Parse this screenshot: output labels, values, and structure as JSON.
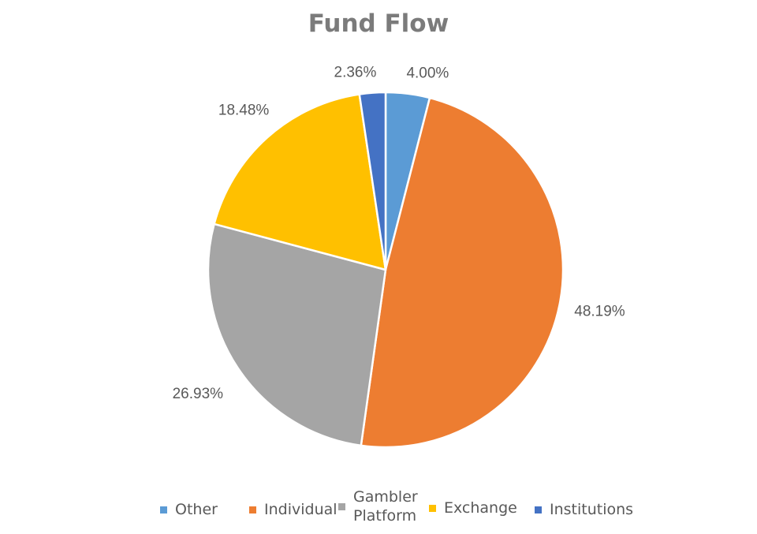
{
  "chart_data": {
    "type": "pie",
    "title": "Fund Flow",
    "categories": [
      "Other",
      "Individual",
      "Gambler Platform",
      "Exchange",
      "Institutions"
    ],
    "values": [
      4.0,
      48.19,
      26.93,
      18.48,
      2.36
    ],
    "data_labels": [
      "4.00%",
      "48.19%",
      "26.93%",
      "18.48%",
      "2.36%"
    ],
    "colors": [
      "#5b9bd5",
      "#ed7d31",
      "#a5a5a5",
      "#ffc000",
      "#4472c4"
    ],
    "legend": {
      "placement": "bottom",
      "entries": [
        {
          "label": "Other",
          "color": "#5b9bd5"
        },
        {
          "label": "Individual",
          "color": "#ed7d31"
        },
        {
          "label": "Gambler\nPlatform",
          "color": "#a5a5a5"
        },
        {
          "label": "Exchange",
          "color": "#ffc000"
        },
        {
          "label": "Institutions",
          "color": "#4472c4"
        }
      ]
    }
  }
}
